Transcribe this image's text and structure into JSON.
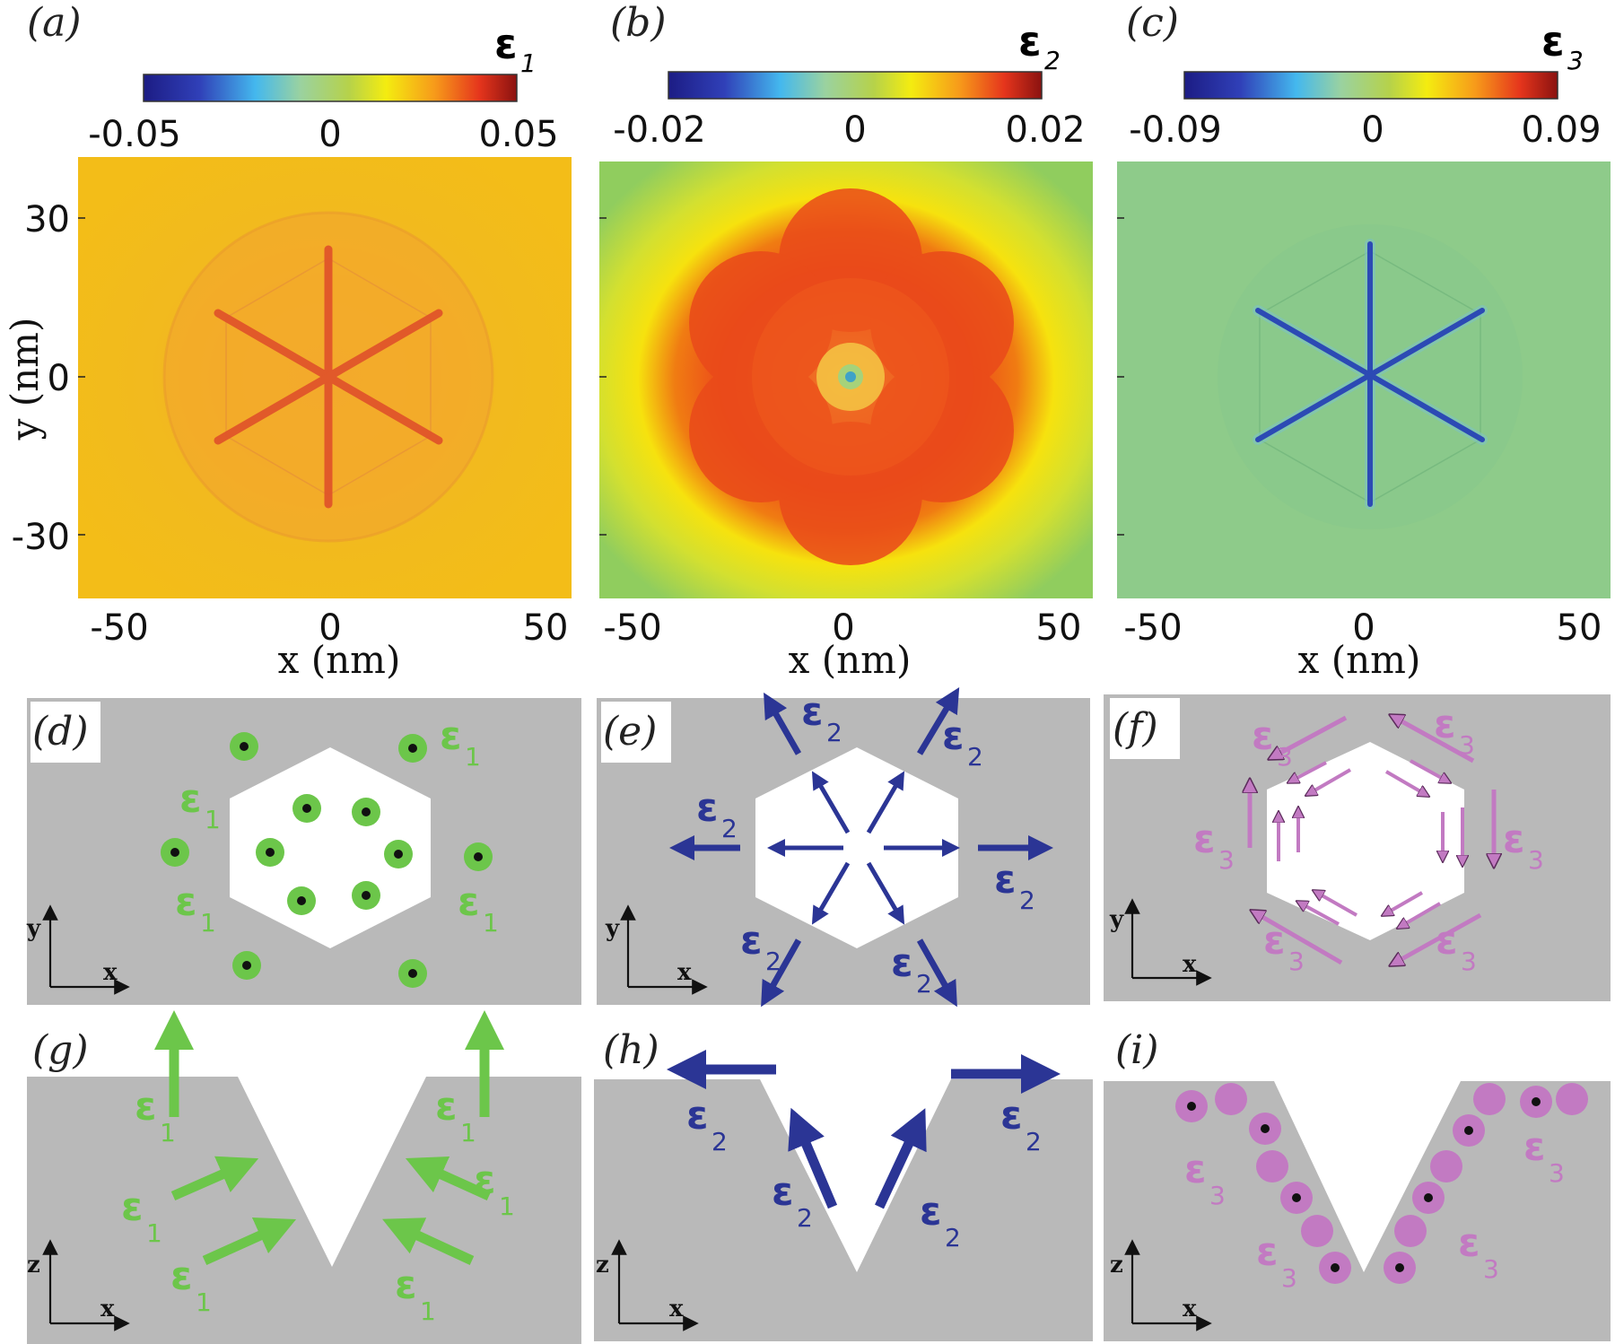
{
  "panel_labels": {
    "a": "(a)",
    "b": "(b)",
    "c": "(c)",
    "d": "(d)",
    "e": "(e)",
    "f": "(f)",
    "g": "(g)",
    "h": "(h)",
    "i": "(i)"
  },
  "colorbars": [
    {
      "symbol": "ε",
      "sub": "1",
      "min": "-0.05",
      "mid": "0",
      "max": "0.05"
    },
    {
      "symbol": "ε",
      "sub": "2",
      "min": "-0.02",
      "mid": "0",
      "max": "0.02"
    },
    {
      "symbol": "ε",
      "sub": "3",
      "min": "-0.09",
      "mid": "0",
      "max": "0.09"
    }
  ],
  "maps": {
    "xlabel": "x (nm)",
    "ylabel": "y (nm)",
    "xticks": [
      "-50",
      "0",
      "50"
    ],
    "yticks": [
      "30",
      "0",
      "-30"
    ]
  },
  "schematic": {
    "axis_x": "x",
    "axis_y": "y",
    "axis_z": "z",
    "strain1": "ε",
    "strain1_sub": "1",
    "strain2": "ε",
    "strain2_sub": "2",
    "strain3": "ε",
    "strain3_sub": "3"
  },
  "colors": {
    "green": "#6cc64a",
    "blue": "#2b3595",
    "purple": "#c27ac2",
    "gray": "#b9b9b9",
    "map_a": "#f2b81e",
    "map_b_bg": "#8ccc66",
    "map_b_ring": "#ee4318",
    "map_c": "#8ecb8a"
  }
}
